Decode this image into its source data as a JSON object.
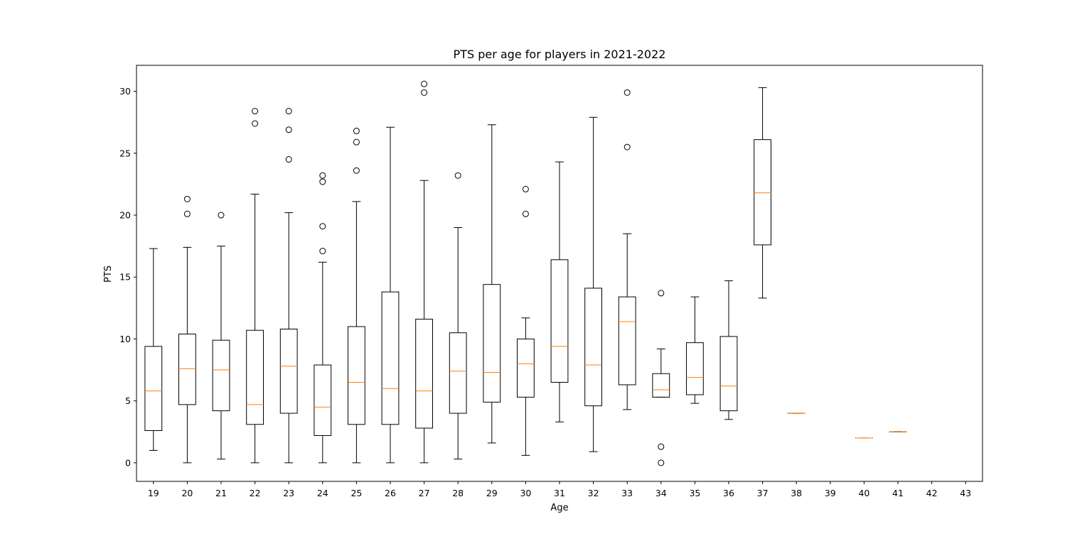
{
  "chart_data": {
    "type": "boxplot",
    "title": "PTS per age for players in 2021-2022",
    "xlabel": "Age",
    "ylabel": "PTS",
    "ylim": [
      -1.5,
      32.1
    ],
    "yticks": [
      0,
      5,
      10,
      15,
      20,
      25,
      30
    ],
    "grid": false,
    "colors": {
      "box": "#000000",
      "median": "#ff7f0e",
      "background": "#ffffff"
    },
    "categories": [
      "19",
      "20",
      "21",
      "22",
      "23",
      "24",
      "25",
      "26",
      "27",
      "28",
      "29",
      "30",
      "31",
      "32",
      "33",
      "34",
      "35",
      "36",
      "37",
      "38",
      "39",
      "40",
      "41",
      "42",
      "43"
    ],
    "boxes": [
      {
        "age": "19",
        "whislo": 1.0,
        "q1": 2.6,
        "med": 5.8,
        "q3": 9.4,
        "whishi": 17.3,
        "fliers": []
      },
      {
        "age": "20",
        "whislo": 0.0,
        "q1": 4.7,
        "med": 7.6,
        "q3": 10.4,
        "whishi": 17.4,
        "fliers": [
          20.1,
          21.3
        ]
      },
      {
        "age": "21",
        "whislo": 0.3,
        "q1": 4.2,
        "med": 7.5,
        "q3": 9.9,
        "whishi": 17.5,
        "fliers": [
          20.0
        ]
      },
      {
        "age": "22",
        "whislo": 0.0,
        "q1": 3.1,
        "med": 4.7,
        "q3": 10.7,
        "whishi": 21.7,
        "fliers": [
          27.4,
          28.4
        ]
      },
      {
        "age": "23",
        "whislo": 0.0,
        "q1": 4.0,
        "med": 7.8,
        "q3": 10.8,
        "whishi": 20.2,
        "fliers": [
          24.5,
          26.9,
          28.4
        ]
      },
      {
        "age": "24",
        "whislo": 0.0,
        "q1": 2.2,
        "med": 4.5,
        "q3": 7.9,
        "whishi": 16.2,
        "fliers": [
          17.1,
          19.1,
          22.7,
          23.2
        ]
      },
      {
        "age": "25",
        "whislo": 0.0,
        "q1": 3.1,
        "med": 6.5,
        "q3": 11.0,
        "whishi": 21.1,
        "fliers": [
          23.6,
          25.9,
          26.8
        ]
      },
      {
        "age": "26",
        "whislo": 0.0,
        "q1": 3.1,
        "med": 6.0,
        "q3": 13.8,
        "whishi": 27.1,
        "fliers": []
      },
      {
        "age": "27",
        "whislo": 0.0,
        "q1": 2.8,
        "med": 5.8,
        "q3": 11.6,
        "whishi": 22.8,
        "fliers": [
          29.9,
          30.6
        ]
      },
      {
        "age": "28",
        "whislo": 0.3,
        "q1": 4.0,
        "med": 7.4,
        "q3": 10.5,
        "whishi": 19.0,
        "fliers": [
          23.2
        ]
      },
      {
        "age": "29",
        "whislo": 1.6,
        "q1": 4.9,
        "med": 7.3,
        "q3": 14.4,
        "whishi": 27.3,
        "fliers": []
      },
      {
        "age": "30",
        "whislo": 0.6,
        "q1": 5.3,
        "med": 8.0,
        "q3": 10.0,
        "whishi": 11.7,
        "fliers": [
          20.1,
          22.1
        ]
      },
      {
        "age": "31",
        "whislo": 3.3,
        "q1": 6.5,
        "med": 9.4,
        "q3": 16.4,
        "whishi": 24.3,
        "fliers": []
      },
      {
        "age": "32",
        "whislo": 0.9,
        "q1": 4.6,
        "med": 7.9,
        "q3": 14.1,
        "whishi": 27.9,
        "fliers": []
      },
      {
        "age": "33",
        "whislo": 4.3,
        "q1": 6.3,
        "med": 11.4,
        "q3": 13.4,
        "whishi": 18.5,
        "fliers": [
          25.5,
          29.9
        ]
      },
      {
        "age": "34",
        "whislo": 5.3,
        "q1": 5.3,
        "med": 5.9,
        "q3": 7.2,
        "whishi": 9.2,
        "fliers": [
          0.0,
          1.3,
          13.7
        ]
      },
      {
        "age": "35",
        "whislo": 4.8,
        "q1": 5.5,
        "med": 6.9,
        "q3": 9.7,
        "whishi": 13.4,
        "fliers": []
      },
      {
        "age": "36",
        "whislo": 3.5,
        "q1": 4.2,
        "med": 6.2,
        "q3": 10.2,
        "whishi": 14.7,
        "fliers": []
      },
      {
        "age": "37",
        "whislo": 13.3,
        "q1": 17.6,
        "med": 21.8,
        "q3": 26.1,
        "whishi": 30.3,
        "fliers": []
      },
      {
        "age": "38",
        "whislo": 4.0,
        "q1": 4.0,
        "med": 4.0,
        "q3": 4.0,
        "whishi": 4.0,
        "fliers": []
      },
      {
        "age": "40",
        "whislo": 2.0,
        "q1": 2.0,
        "med": 2.0,
        "q3": 2.0,
        "whishi": 2.0,
        "fliers": []
      },
      {
        "age": "41",
        "whislo": 2.5,
        "q1": 2.5,
        "med": 2.5,
        "q3": 2.5,
        "whishi": 2.5,
        "fliers": []
      }
    ]
  }
}
